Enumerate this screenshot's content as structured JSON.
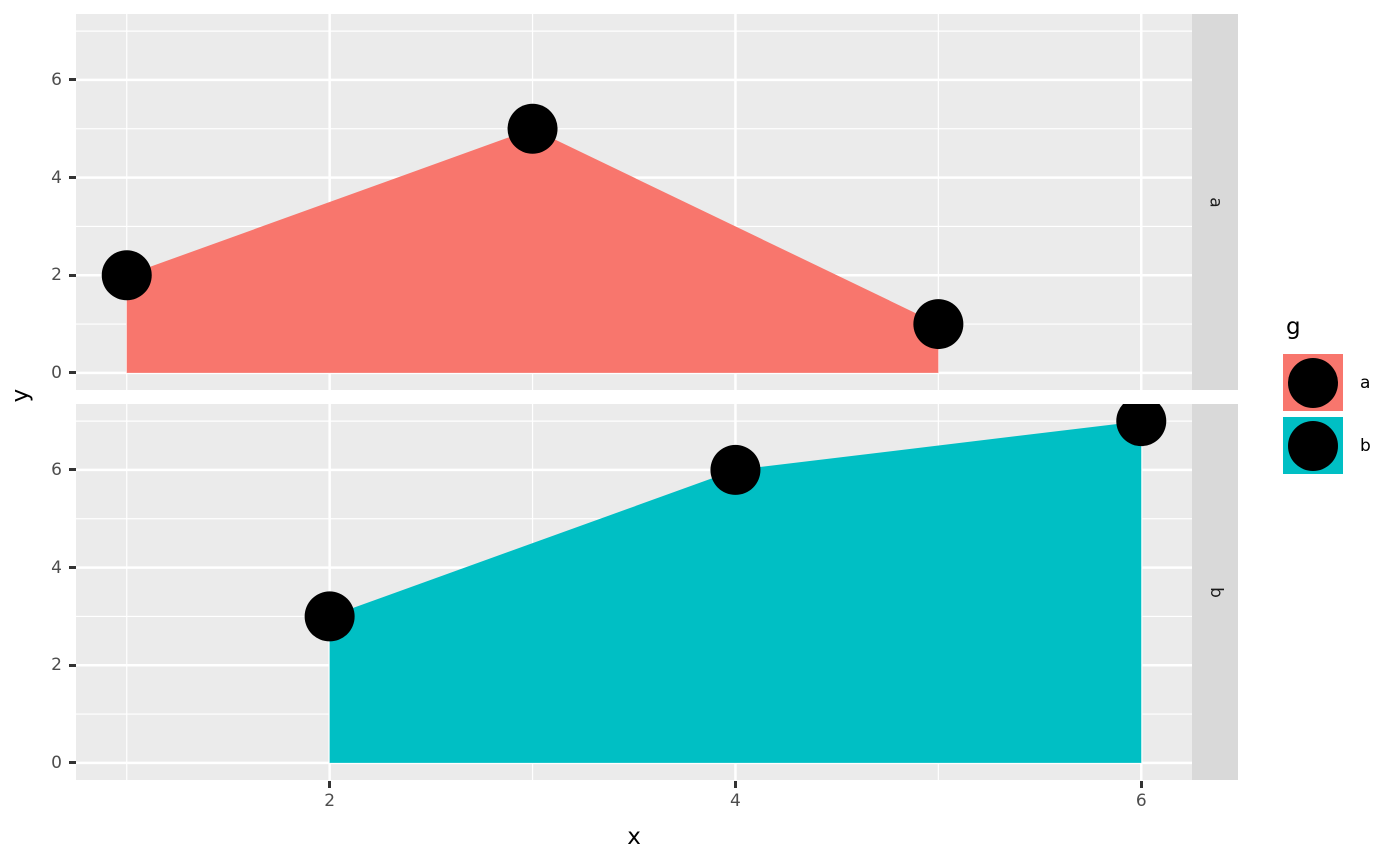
{
  "chart_data": {
    "type": "area",
    "title": "",
    "xlabel": "x",
    "ylabel": "y",
    "xlim": [
      0.75,
      6.25
    ],
    "ylim": [
      -0.35,
      7.35
    ],
    "x_major_ticks": [
      2,
      4,
      6
    ],
    "x_minor_gridlines": [
      1,
      3,
      5
    ],
    "y_major_ticks": [
      0,
      2,
      4,
      6
    ],
    "y_minor_gridlines": [
      1,
      3,
      5,
      7
    ],
    "grid": true,
    "legend_position": "right",
    "facets": [
      {
        "label": "a",
        "series": "a",
        "fill_color": "#F8766D",
        "baseline": 0,
        "points": [
          [
            1,
            2
          ],
          [
            3,
            5
          ],
          [
            5,
            1
          ]
        ]
      },
      {
        "label": "b",
        "series": "b",
        "fill_color": "#00BFC4",
        "baseline": 0,
        "points": [
          [
            2,
            3
          ],
          [
            4,
            6
          ],
          [
            6,
            7
          ]
        ]
      }
    ],
    "legend": {
      "title": "g",
      "entries": [
        {
          "label": "a",
          "color": "#F8766D"
        },
        {
          "label": "b",
          "color": "#00BFC4"
        }
      ]
    },
    "colors": {
      "point": "#000000",
      "panel_bg": "#EBEBEB",
      "strip_bg": "#D9D9D9",
      "gridline": "#FFFFFF",
      "tick_mark": "#333333",
      "tick_label": "#4D4D4D",
      "axis_title": "#000000"
    }
  }
}
